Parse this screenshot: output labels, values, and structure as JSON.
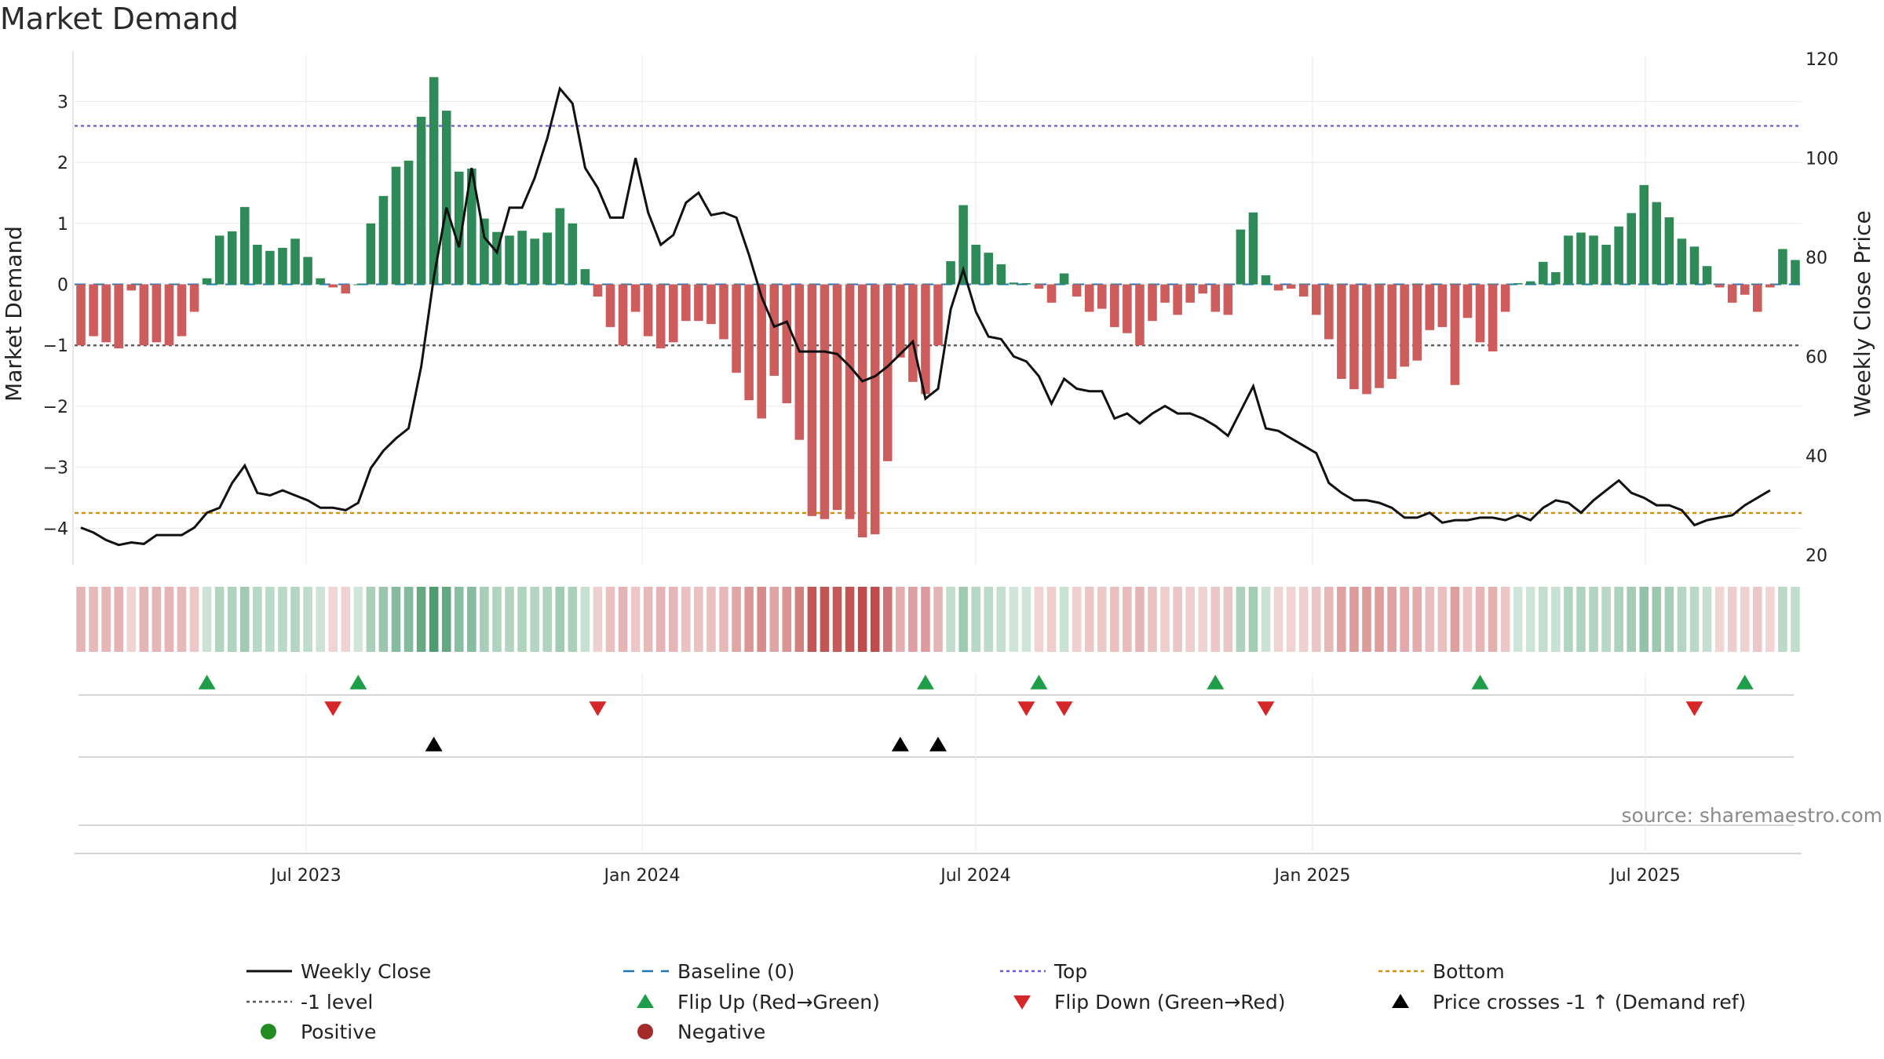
{
  "title": "Market Demand",
  "source": "source: sharemaestro.com",
  "chart_data": {
    "type": "bar",
    "title": "Market Demand",
    "ylabel": "Market Demand",
    "y2label": "Weekly Close Price",
    "ylim": [
      -4.6,
      3.7
    ],
    "y2lim": [
      18,
      120
    ],
    "y_ticks": [
      "3",
      "2",
      "1",
      "0",
      "−1",
      "−2",
      "−3",
      "−4"
    ],
    "y2_ticks": [
      "120",
      "100",
      "80",
      "60",
      "40",
      "20"
    ],
    "x_ticks": [
      "Jul 2023",
      "Jan 2024",
      "Jul 2024",
      "Jan 2025",
      "Jul 2025"
    ],
    "reference_lines": {
      "top": 2.6,
      "minus_one": -1,
      "bottom": -3.75,
      "baseline": 0
    },
    "demand": [
      -1.0,
      -0.85,
      -0.95,
      -1.05,
      -0.1,
      -1.0,
      -0.95,
      -1.0,
      -0.85,
      -0.45,
      0.1,
      0.8,
      0.87,
      1.27,
      0.65,
      0.55,
      0.6,
      0.75,
      0.45,
      0.1,
      -0.05,
      -0.15,
      0.0,
      1.0,
      1.45,
      1.93,
      2.03,
      2.75,
      3.4,
      2.85,
      1.85,
      1.9,
      1.08,
      0.86,
      0.8,
      0.88,
      0.75,
      0.85,
      1.25,
      1.0,
      0.25,
      -0.2,
      -0.7,
      -1.0,
      -0.45,
      -0.85,
      -1.05,
      -0.95,
      -0.6,
      -0.6,
      -0.65,
      -0.9,
      -1.45,
      -1.9,
      -2.2,
      -1.5,
      -1.95,
      -2.55,
      -3.8,
      -3.85,
      -3.7,
      -3.85,
      -4.15,
      -4.1,
      -2.9,
      -1.2,
      -1.6,
      -1.8,
      -1.0,
      0.38,
      1.3,
      0.65,
      0.52,
      0.33,
      0.03,
      0.02,
      -0.07,
      -0.3,
      0.18,
      -0.2,
      -0.45,
      -0.4,
      -0.7,
      -0.8,
      -1.0,
      -0.6,
      -0.3,
      -0.5,
      -0.3,
      -0.15,
      -0.45,
      -0.5,
      0.9,
      1.18,
      0.15,
      -0.1,
      -0.07,
      -0.2,
      -0.5,
      -0.9,
      -1.55,
      -1.72,
      -1.8,
      -1.7,
      -1.55,
      -1.35,
      -1.25,
      -0.75,
      -0.7,
      -1.65,
      -0.55,
      -0.95,
      -1.1,
      -0.45,
      0.02,
      0.05,
      0.37,
      0.2,
      0.8,
      0.85,
      0.8,
      0.65,
      0.95,
      1.17,
      1.63,
      1.35,
      1.1,
      0.75,
      0.62,
      0.3,
      -0.05,
      -0.3,
      -0.17,
      -0.45,
      -0.05,
      0.58,
      0.4
    ],
    "weekly_close": [
      25.5,
      24.5,
      23,
      22,
      22.5,
      22.2,
      24,
      24,
      24,
      25.5,
      28.5,
      29.5,
      34.5,
      38,
      32.5,
      32,
      33,
      32,
      31,
      29.5,
      29.5,
      29,
      30.5,
      37.5,
      41,
      43.5,
      45.5,
      58,
      76,
      90,
      82,
      98,
      84,
      81,
      90,
      90,
      96,
      104,
      114,
      111,
      98,
      94,
      88,
      88,
      100,
      89,
      82.5,
      84.5,
      91,
      93,
      88.5,
      89,
      88,
      80.5,
      72,
      66,
      67,
      61,
      61,
      61,
      60.5,
      58,
      55,
      56,
      58,
      60.5,
      63,
      51.5,
      53.5,
      69.5,
      77.5,
      69,
      64,
      63.5,
      60,
      59,
      56,
      50.5,
      55.5,
      53.5,
      53,
      53,
      47.5,
      48.5,
      46.5,
      48.5,
      50,
      48.5,
      48.5,
      47.5,
      46,
      44,
      49,
      54,
      45.5,
      45,
      43.5,
      42,
      40.5,
      34.5,
      32.5,
      31,
      31,
      30.5,
      29.5,
      27.5,
      27.5,
      28.5,
      26.5,
      27,
      27,
      27.5,
      27.5,
      27,
      28,
      27,
      29.5,
      31,
      30.5,
      28.5,
      31,
      33,
      35,
      32.5,
      31.5,
      30,
      30,
      29,
      26,
      27,
      27.5,
      28,
      30,
      31.5,
      33
    ]
  },
  "indicator_rows": {
    "flip_up_positions": [
      10,
      22,
      67,
      76,
      90,
      111,
      132
    ],
    "flip_down_positions": [
      20,
      41,
      75,
      78,
      94,
      128
    ],
    "price_cross_positions": [
      28,
      65,
      68
    ]
  },
  "legend": [
    {
      "label": "Weekly Close",
      "symbol": "line-black"
    },
    {
      "label": "Baseline (0)",
      "symbol": "dash-teal"
    },
    {
      "label": "Top",
      "symbol": "dot-blue"
    },
    {
      "label": "Bottom",
      "symbol": "dot-orange"
    },
    {
      "label": "-1 level",
      "symbol": "dot-gray"
    },
    {
      "label": "Flip Up (Red→Green)",
      "symbol": "triangle-up-green"
    },
    {
      "label": "Flip Down (Green→Red)",
      "symbol": "triangle-down-red"
    },
    {
      "label": "Price crosses -1 ↑ (Demand ref)",
      "symbol": "triangle-up-black"
    },
    {
      "label": "Positive",
      "symbol": "circle-green"
    },
    {
      "label": "Negative",
      "symbol": "circle-red"
    }
  ],
  "colors": {
    "positive": "#2e8b57",
    "negative": "#cd5c5c",
    "line": "#111111",
    "baseline": "#1f77b4",
    "top": "#6a5acd",
    "bottom": "#d4900a",
    "minus_one": "#555555",
    "flip_up": "#1e9e48",
    "flip_down": "#d62728",
    "cross": "#000000",
    "legend_positive": "#228b22",
    "legend_negative": "#a52a2a"
  }
}
